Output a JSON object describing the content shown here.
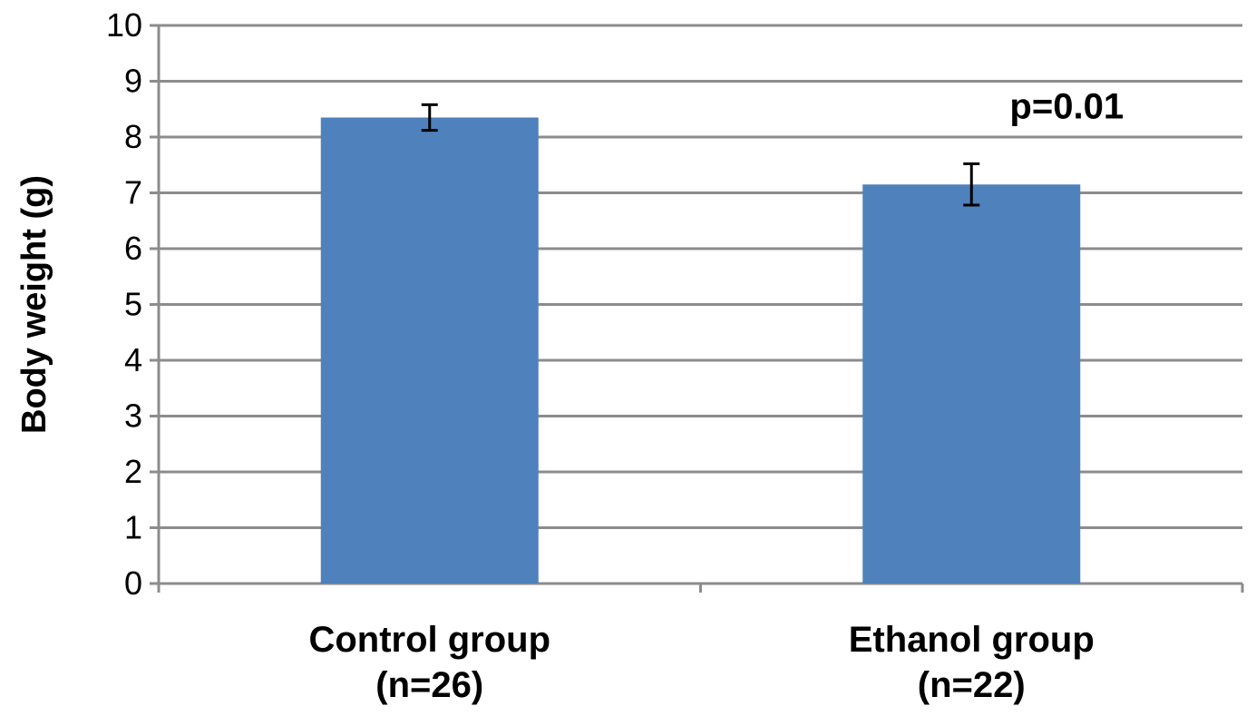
{
  "chart_data": {
    "type": "bar",
    "categories": [
      [
        "Control group",
        "(n=26)"
      ],
      [
        "Ethanol group",
        "(n=22)"
      ]
    ],
    "values": [
      8.35,
      7.15
    ],
    "error": [
      0.23,
      0.37
    ],
    "ylabel": "Body weight (g)",
    "xlabel": "",
    "title": "",
    "ylim": [
      0,
      10
    ],
    "yticks": [
      0,
      1,
      2,
      3,
      4,
      5,
      6,
      7,
      8,
      9,
      10
    ],
    "grid": true,
    "legend": "none",
    "bar_color": "#4f81bd",
    "annotations": [
      {
        "text": "p=0.01",
        "x_category": 1,
        "y": 8.5
      }
    ]
  }
}
